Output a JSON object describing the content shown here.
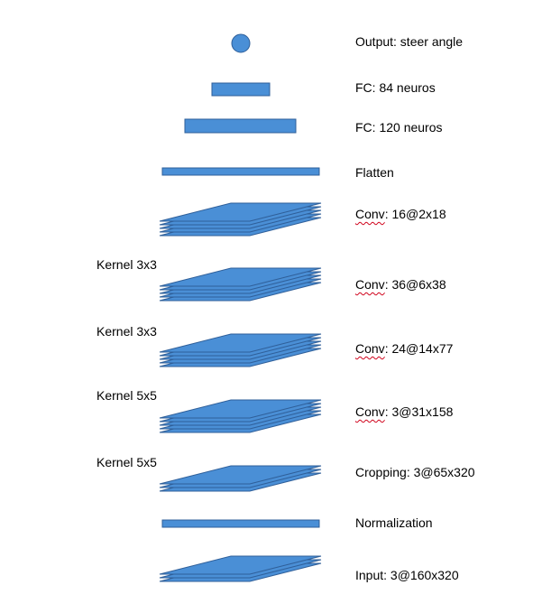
{
  "colors": {
    "fill": "#4a8fd6",
    "stroke": "#2f5f99",
    "spellcheck": "#d0021b"
  },
  "layers": [
    {
      "id": "output",
      "shape": "circle",
      "label": "Output: steer angle"
    },
    {
      "id": "fc84",
      "shape": "bar",
      "label": "FC: 84 neuros"
    },
    {
      "id": "fc120",
      "shape": "bar",
      "label": "FC: 120 neuros"
    },
    {
      "id": "flatten",
      "shape": "bar",
      "label": "Flatten"
    },
    {
      "id": "conv5",
      "shape": "stack",
      "label_word": "Conv",
      "label_rest": ": 16@2x18"
    },
    {
      "id": "conv4",
      "shape": "stack",
      "label_word": "Conv",
      "label_rest": ": 36@6x38"
    },
    {
      "id": "conv3",
      "shape": "stack",
      "label_word": "Conv",
      "label_rest": ": 24@14x77"
    },
    {
      "id": "conv2",
      "shape": "stack",
      "label_word": "Conv",
      "label_rest": ": 3@31x158"
    },
    {
      "id": "cropping",
      "shape": "stack",
      "label": "Cropping: 3@65x320"
    },
    {
      "id": "normalization",
      "shape": "bar",
      "label": "Normalization"
    },
    {
      "id": "input",
      "shape": "stack",
      "label": "Input: 3@160x320"
    }
  ],
  "kernels": [
    "Kernel 3x3",
    "Kernel 3x3",
    "Kernel 5x5",
    "Kernel 5x5"
  ]
}
